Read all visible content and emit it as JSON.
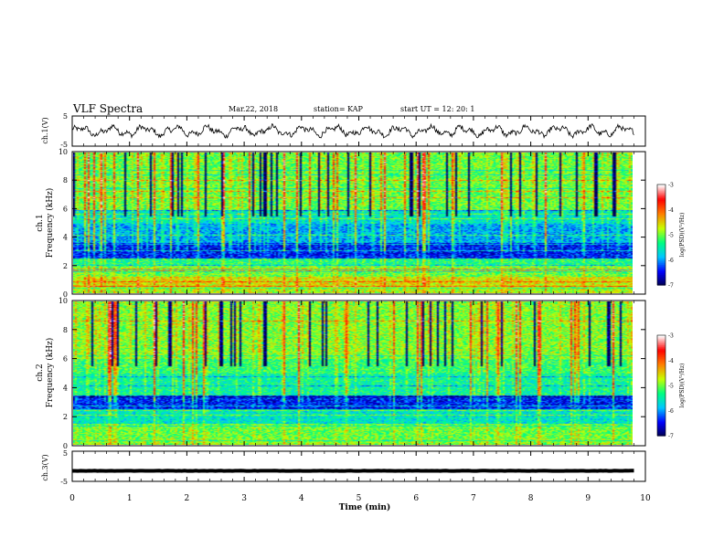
{
  "header": {
    "title": "VLF Spectra",
    "date": "Mar.22, 2018",
    "station": "station= KAP",
    "start": "start  UT =   12: 20: 1"
  },
  "chart_data": [
    {
      "type": "line",
      "panel": "ch1-waveform",
      "ylabel": "ch.1(V)",
      "ylim": [
        -5,
        5
      ],
      "yticks": [
        "5",
        "-5"
      ],
      "xlim": [
        0,
        10
      ],
      "mean_value": 0,
      "amplitude": 2
    },
    {
      "type": "heatmap",
      "panel": "ch1-spectrogram",
      "ylabel": "ch.1\nFrequency (kHz)",
      "ylim": [
        0,
        10
      ],
      "yticks": [
        "0",
        "2",
        "4",
        "6",
        "8",
        "10"
      ],
      "xlim": [
        0,
        9.8
      ],
      "bands": [
        {
          "from": 0,
          "to": 0.5,
          "level": -4.8
        },
        {
          "from": 0.5,
          "to": 1.2,
          "level": -4.6
        },
        {
          "from": 1.2,
          "to": 2.0,
          "level": -5.0
        },
        {
          "from": 2.0,
          "to": 2.5,
          "level": -5.3
        },
        {
          "from": 2.5,
          "to": 3.5,
          "level": -6.4
        },
        {
          "from": 3.5,
          "to": 5.0,
          "level": -5.9
        },
        {
          "from": 5.0,
          "to": 6.0,
          "level": -5.6
        },
        {
          "from": 6.0,
          "to": 10.0,
          "level": -5.0
        }
      ],
      "colorbar": {
        "label": "log(PSD)(V²/Hz)",
        "min": -7,
        "max": -3,
        "ticks": [
          "-3",
          "-4",
          "-5",
          "-6",
          "-7"
        ]
      }
    },
    {
      "type": "heatmap",
      "panel": "ch2-spectrogram",
      "ylabel": "ch.2\nFrequency (kHz)",
      "ylim": [
        0,
        10
      ],
      "yticks": [
        "0",
        "2",
        "4",
        "6",
        "8",
        "10"
      ],
      "xlim": [
        0,
        9.8
      ],
      "bands": [
        {
          "from": 0,
          "to": 0.5,
          "level": -4.9
        },
        {
          "from": 0.5,
          "to": 1.5,
          "level": -5.0
        },
        {
          "from": 1.5,
          "to": 2.5,
          "level": -5.6
        },
        {
          "from": 2.5,
          "to": 3.5,
          "level": -6.4
        },
        {
          "from": 3.5,
          "to": 5.0,
          "level": -5.4
        },
        {
          "from": 5.0,
          "to": 6.0,
          "level": -5.2
        },
        {
          "from": 6.0,
          "to": 10.0,
          "level": -4.9
        }
      ],
      "colorbar": {
        "label": "log(PSD)(V²/Hz)",
        "min": -7,
        "max": -3,
        "ticks": [
          "-3",
          "-4",
          "-5",
          "-6",
          "-7"
        ]
      }
    },
    {
      "type": "line",
      "panel": "ch3-waveform",
      "ylabel": "ch.3(V)",
      "ylim": [
        -5,
        5
      ],
      "yticks": [
        "5",
        "-5"
      ],
      "xlim": [
        0,
        9.8
      ],
      "mean_value": -1.5,
      "amplitude": 0.1
    }
  ],
  "xaxis": {
    "label": "Time (min)",
    "ticks": [
      "0",
      "1",
      "2",
      "3",
      "4",
      "5",
      "6",
      "7",
      "8",
      "9",
      "10"
    ],
    "range": [
      0,
      10
    ]
  },
  "colors": {
    "colormap": [
      "#000050",
      "#0000ff",
      "#00c8ff",
      "#00ff80",
      "#c8ff00",
      "#ff8000",
      "#ff0000",
      "#ffffff"
    ]
  }
}
